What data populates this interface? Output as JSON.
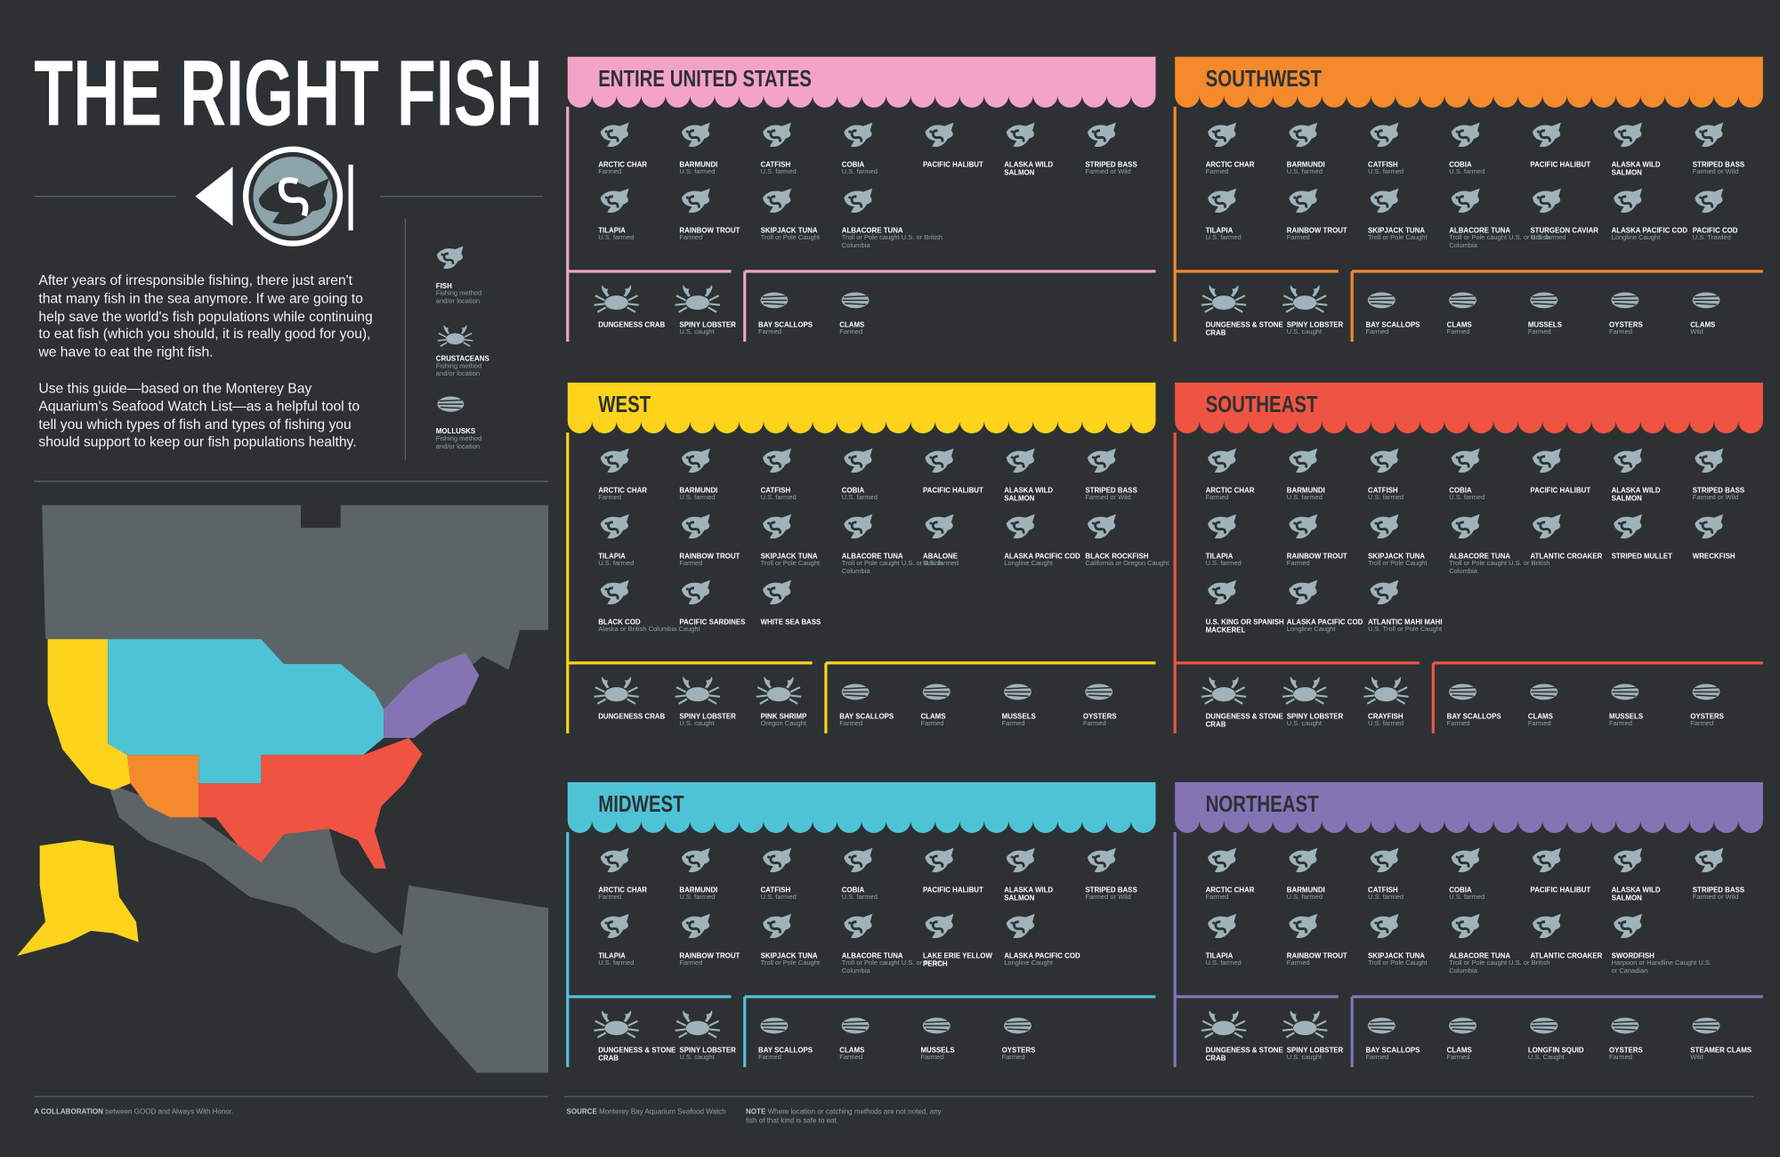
{
  "header": {
    "title": "THE RIGHT FISH"
  },
  "intro": {
    "paragraphs": [
      "After years of irresponsible fishing, there just aren't that many fish in the sea anymore. If we are going to help save the world's fish populations while continuing to eat fish (which you should, it is really good for you), we have to eat the right fish.",
      "Use this guide—based on the Monterey Bay Aquarium's Seafood Watch List—as a helpful tool to tell you which types of fish and types of fishing you should support to keep our fish populations healthy."
    ]
  },
  "legend": {
    "items": [
      {
        "name": "FISH",
        "note": "Fishing method and/or location"
      },
      {
        "name": "CRUSTACEANS",
        "note": "Fishing method and/or location"
      },
      {
        "name": "MOLLUSKS",
        "note": "Fishing method and/or location"
      }
    ]
  },
  "regions": [
    {
      "name": "ENTIRE UNITED STATES",
      "color": "#f4a3c8",
      "fish": [
        {
          "name": "ARCTIC CHAR",
          "note": "Farmed"
        },
        {
          "name": "BARMUNDI",
          "note": "U.S. farmed"
        },
        {
          "name": "CATFISH",
          "note": "U.S. farmed"
        },
        {
          "name": "COBIA",
          "note": "U.S. farmed"
        },
        {
          "name": "PACIFIC HALIBUT"
        },
        {
          "name": "ALASKA WILD SALMON"
        },
        {
          "name": "STRIPED BASS",
          "note": "Farmed or Wild"
        },
        {
          "name": "TILAPIA",
          "note": "U.S. farmed"
        },
        {
          "name": "RAINBOW TROUT",
          "note": "Farmed"
        },
        {
          "name": "SKIPJACK TUNA",
          "note": "Troll or Pole Caught"
        },
        {
          "name": "ALBACORE TUNA",
          "note": "Troll or Pole caught U.S. or British Columbia"
        }
      ],
      "crustaceans": [
        {
          "name": "DUNGENESS CRAB"
        },
        {
          "name": "SPINY LOBSTER",
          "note": "U.S. caught"
        }
      ],
      "mollusks": [
        {
          "name": "BAY SCALLOPS",
          "note": "Farmed"
        },
        {
          "name": "CLAMS",
          "note": "Farmed"
        }
      ]
    },
    {
      "name": "SOUTHWEST",
      "color": "#f58a2c",
      "fish": [
        {
          "name": "ARCTIC CHAR",
          "note": "Farmed"
        },
        {
          "name": "BARMUNDI",
          "note": "U.S. farmed"
        },
        {
          "name": "CATFISH",
          "note": "U.S. farmed"
        },
        {
          "name": "COBIA",
          "note": "U.S. farmed"
        },
        {
          "name": "PACIFIC HALIBUT"
        },
        {
          "name": "ALASKA WILD SALMON"
        },
        {
          "name": "STRIPED BASS",
          "note": "Farmed or Wild"
        },
        {
          "name": "TILAPIA",
          "note": "U.S. farmed"
        },
        {
          "name": "RAINBOW TROUT",
          "note": "Farmed"
        },
        {
          "name": "SKIPJACK TUNA",
          "note": "Troll or Pole Caught"
        },
        {
          "name": "ALBACORE TUNA",
          "note": "Troll or Pole caught U.S. or British Columbia"
        },
        {
          "name": "STURGEON CAVIAR",
          "note": "U.S. farmed"
        },
        {
          "name": "ALASKA PACIFIC COD",
          "note": "Longline Caught"
        },
        {
          "name": "PACIFIC COD",
          "note": "U.S. Trawled"
        }
      ],
      "crustaceans": [
        {
          "name": "DUNGENESS & STONE CRAB"
        },
        {
          "name": "SPINY LOBSTER",
          "note": "U.S. caught"
        }
      ],
      "mollusks": [
        {
          "name": "BAY SCALLOPS",
          "note": "Farmed"
        },
        {
          "name": "CLAMS",
          "note": "Farmed"
        },
        {
          "name": "MUSSELS",
          "note": "Farmed"
        },
        {
          "name": "OYSTERS",
          "note": "Farmed"
        },
        {
          "name": "CLAMS",
          "note": "Wild"
        }
      ]
    },
    {
      "name": "WEST",
      "color": "#fdd31c",
      "fish": [
        {
          "name": "ARCTIC CHAR",
          "note": "Farmed"
        },
        {
          "name": "BARMUNDI",
          "note": "U.S. farmed"
        },
        {
          "name": "CATFISH",
          "note": "U.S. farmed"
        },
        {
          "name": "COBIA",
          "note": "U.S. farmed"
        },
        {
          "name": "PACIFIC HALIBUT"
        },
        {
          "name": "ALASKA WILD SALMON"
        },
        {
          "name": "STRIPED BASS",
          "note": "Farmed or Wild"
        },
        {
          "name": "TILAPIA",
          "note": "U.S. farmed"
        },
        {
          "name": "RAINBOW TROUT",
          "note": "Farmed"
        },
        {
          "name": "SKIPJACK TUNA",
          "note": "Troll or Pole Caught"
        },
        {
          "name": "ALBACORE TUNA",
          "note": "Troll or Pole caught U.S. or British Columbia"
        },
        {
          "name": "ABALONE",
          "note": "U.S. farmed"
        },
        {
          "name": "ALASKA PACIFIC COD",
          "note": "Longline Caught"
        },
        {
          "name": "BLACK ROCKFISH",
          "note": "California or Oregon Caught"
        },
        {
          "name": "BLACK COD",
          "note": "Alaska or British Columbia Caught"
        },
        {
          "name": "PACIFIC SARDINES"
        },
        {
          "name": "WHITE SEA BASS"
        }
      ],
      "crustaceans": [
        {
          "name": "DUNGENESS CRAB"
        },
        {
          "name": "SPINY LOBSTER",
          "note": "U.S. caught"
        },
        {
          "name": "PINK SHRIMP",
          "note": "Oregon Caught"
        }
      ],
      "mollusks": [
        {
          "name": "BAY SCALLOPS",
          "note": "Farmed"
        },
        {
          "name": "CLAMS",
          "note": "Farmed"
        },
        {
          "name": "MUSSELS",
          "note": "Farmed"
        },
        {
          "name": "OYSTERS",
          "note": "Farmed"
        }
      ]
    },
    {
      "name": "SOUTHEAST",
      "color": "#ef5443",
      "fish": [
        {
          "name": "ARCTIC CHAR",
          "note": "Farmed"
        },
        {
          "name": "BARMUNDI",
          "note": "U.S. farmed"
        },
        {
          "name": "CATFISH",
          "note": "U.S. farmed"
        },
        {
          "name": "COBIA",
          "note": "U.S. farmed"
        },
        {
          "name": "PACIFIC HALIBUT"
        },
        {
          "name": "ALASKA WILD SALMON"
        },
        {
          "name": "STRIPED BASS",
          "note": "Farmed or Wild"
        },
        {
          "name": "TILAPIA",
          "note": "U.S. farmed"
        },
        {
          "name": "RAINBOW TROUT",
          "note": "Farmed"
        },
        {
          "name": "SKIPJACK TUNA",
          "note": "Troll or Pole Caught"
        },
        {
          "name": "ALBACORE TUNA",
          "note": "Troll or Pole caught U.S. or British Columbia"
        },
        {
          "name": "ATLANTIC CROAKER"
        },
        {
          "name": "STRIPED MULLET"
        },
        {
          "name": "WRECKFISH"
        },
        {
          "name": "U.S. KING OR SPANISH MACKEREL"
        },
        {
          "name": "ALASKA PACIFIC COD",
          "note": "Longline Caught"
        },
        {
          "name": "ATLANTIC MAHI MAHI",
          "note": "U.S. Troll or Pole Caught"
        }
      ],
      "crustaceans": [
        {
          "name": "DUNGENESS & STONE CRAB"
        },
        {
          "name": "SPINY LOBSTER",
          "note": "U.S. caught"
        },
        {
          "name": "CRAYFISH",
          "note": "U.S. farmed"
        }
      ],
      "mollusks": [
        {
          "name": "BAY SCALLOPS",
          "note": "Farmed"
        },
        {
          "name": "CLAMS",
          "note": "Farmed"
        },
        {
          "name": "MUSSELS",
          "note": "Farmed"
        },
        {
          "name": "OYSTERS",
          "note": "Farmed"
        }
      ]
    },
    {
      "name": "MIDWEST",
      "color": "#4fc3d6",
      "fish": [
        {
          "name": "ARCTIC CHAR",
          "note": "Farmed"
        },
        {
          "name": "BARMUNDI",
          "note": "U.S. farmed"
        },
        {
          "name": "CATFISH",
          "note": "U.S. farmed"
        },
        {
          "name": "COBIA",
          "note": "U.S. farmed"
        },
        {
          "name": "PACIFIC HALIBUT"
        },
        {
          "name": "ALASKA WILD SALMON"
        },
        {
          "name": "STRIPED BASS",
          "note": "Farmed or Wild"
        },
        {
          "name": "TILAPIA",
          "note": "U.S. farmed"
        },
        {
          "name": "RAINBOW TROUT",
          "note": "Farmed"
        },
        {
          "name": "SKIPJACK TUNA",
          "note": "Troll or Pole Caught"
        },
        {
          "name": "ALBACORE TUNA",
          "note": "Troll or Pole caught U.S. or British Columbia"
        },
        {
          "name": "LAKE ERIE YELLOW PERCH"
        },
        {
          "name": "ALASKA PACIFIC COD",
          "note": "Longline Caught"
        }
      ],
      "crustaceans": [
        {
          "name": "DUNGENESS & STONE CRAB"
        },
        {
          "name": "SPINY LOBSTER",
          "note": "U.S. caught"
        }
      ],
      "mollusks": [
        {
          "name": "BAY SCALLOPS",
          "note": "Farmed"
        },
        {
          "name": "CLAMS",
          "note": "Farmed"
        },
        {
          "name": "MUSSELS",
          "note": "Farmed"
        },
        {
          "name": "OYSTERS",
          "note": "Farmed"
        }
      ]
    },
    {
      "name": "NORTHEAST",
      "color": "#8474b4",
      "fish": [
        {
          "name": "ARCTIC CHAR",
          "note": "Farmed"
        },
        {
          "name": "BARMUNDI",
          "note": "U.S. farmed"
        },
        {
          "name": "CATFISH",
          "note": "U.S. farmed"
        },
        {
          "name": "COBIA",
          "note": "U.S. farmed"
        },
        {
          "name": "PACIFIC HALIBUT"
        },
        {
          "name": "ALASKA WILD SALMON"
        },
        {
          "name": "STRIPED BASS",
          "note": "Farmed or Wild"
        },
        {
          "name": "TILAPIA",
          "note": "U.S. farmed"
        },
        {
          "name": "RAINBOW TROUT",
          "note": "Farmed"
        },
        {
          "name": "SKIPJACK TUNA",
          "note": "Troll or Pole Caught"
        },
        {
          "name": "ALBACORE TUNA",
          "note": "Troll or Pole caught U.S. or British Columbia"
        },
        {
          "name": "ATLANTIC CROAKER"
        },
        {
          "name": "SWORDFISH",
          "note": "Harpoon or Handline Caught U.S. or Canadian"
        }
      ],
      "crustaceans": [
        {
          "name": "DUNGENESS & STONE CRAB"
        },
        {
          "name": "SPINY LOBSTER",
          "note": "U.S. caught"
        }
      ],
      "mollusks": [
        {
          "name": "BAY SCALLOPS",
          "note": "Farmed"
        },
        {
          "name": "CLAMS",
          "note": "Farmed"
        },
        {
          "name": "LONGFIN SQUID",
          "note": "U.S. Caught"
        },
        {
          "name": "OYSTERS",
          "note": "Farmed"
        },
        {
          "name": "STEAMER CLAMS",
          "note": "Wild"
        }
      ]
    }
  ],
  "footer": {
    "collaboration": {
      "label": "A COLLABORATION",
      "text": "between GOOD and Always With Honor."
    },
    "source": {
      "label": "SOURCE",
      "text": "Monterey Bay Aquarium Seafood Watch"
    },
    "note": {
      "label": "NOTE",
      "text": "Where location or catching methods are not noted, any fish of that kind is safe to eat."
    }
  }
}
